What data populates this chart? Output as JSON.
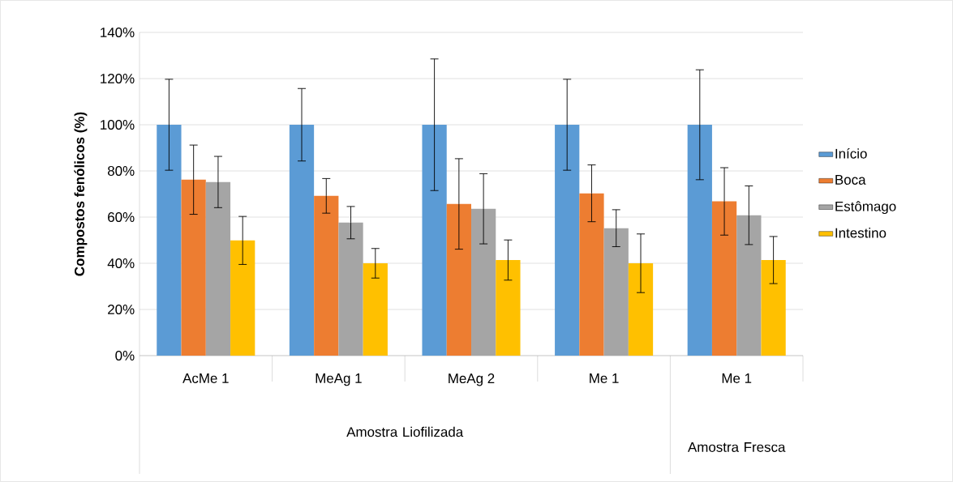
{
  "chart_data": {
    "type": "bar",
    "ylabel": "Compostos fenólicos (%)",
    "categories": [
      "AcMe 1",
      "MeAg 1",
      "MeAg 2",
      "Me 1",
      "Me 1"
    ],
    "annotations": [
      "Amostra Liofilizada",
      "Amostra Fresca"
    ],
    "series": [
      {
        "name": "Início",
        "color": "#5b9bd5",
        "values": [
          100,
          100,
          100,
          100,
          100
        ],
        "errors": [
          19.7,
          15.7,
          28.5,
          19.7,
          23.8
        ]
      },
      {
        "name": "Boca",
        "color": "#ed7d31",
        "values": [
          76.2,
          69.2,
          65.7,
          70.3,
          66.8
        ],
        "errors": [
          15,
          7.5,
          19.6,
          12.3,
          14.6
        ]
      },
      {
        "name": "Estômago",
        "color": "#a5a5a5",
        "values": [
          75.2,
          57.6,
          63.6,
          55.2,
          60.8
        ],
        "errors": [
          11.1,
          7,
          15.2,
          8,
          12.7
        ]
      },
      {
        "name": "Intestino",
        "color": "#ffc000",
        "values": [
          49.9,
          40.0,
          41.4,
          40.0,
          41.4
        ],
        "errors": [
          10.4,
          6.4,
          8.7,
          12.7,
          10.2
        ]
      }
    ],
    "ylim": [
      0,
      140
    ],
    "yticks": [
      {
        "value": 0,
        "label": "0%"
      },
      {
        "value": 20,
        "label": "20%"
      },
      {
        "value": 40,
        "label": "40%"
      },
      {
        "value": 60,
        "label": "60%"
      },
      {
        "value": 80,
        "label": "80%"
      },
      {
        "value": 100,
        "label": "100%"
      },
      {
        "value": 120,
        "label": "120%"
      },
      {
        "value": 140,
        "label": "140%"
      }
    ],
    "grid": "y",
    "legend": "right"
  }
}
